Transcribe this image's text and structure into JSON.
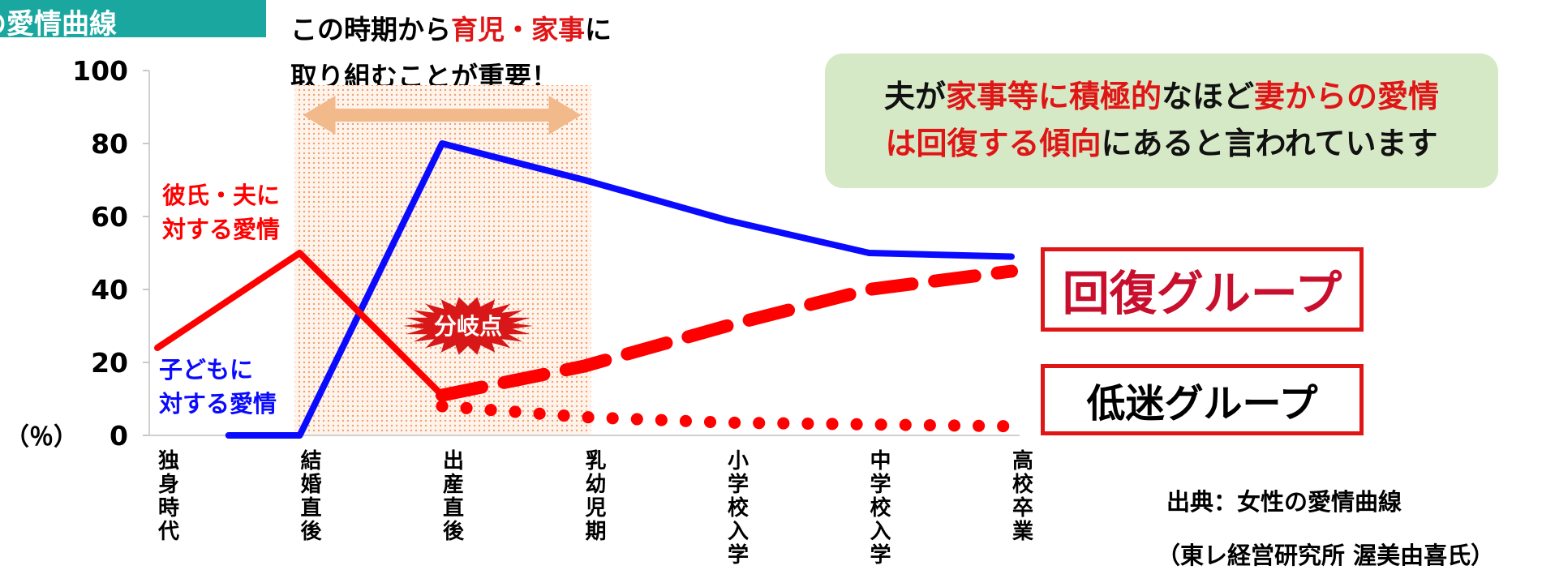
{
  "header": {
    "title_fragment": "の愛情曲線"
  },
  "top_note": {
    "part1": "この時期から",
    "highlight": "育児・家事",
    "part2": "に",
    "line2": "取り組むことが重要！"
  },
  "callout": {
    "l1_a": "夫が",
    "l1_b": "家事等に積極的",
    "l1_c": "なほど",
    "l1_d": "妻からの愛情",
    "l2_a": "は回復する傾向",
    "l2_b": "にあると言われています"
  },
  "groups": {
    "recovery": "回復グループ",
    "stagnant": "低迷グループ"
  },
  "source": {
    "line1": "出典：女性の愛情曲線",
    "line2": "（東レ経営研究所 渥美由喜氏）"
  },
  "chart_data": {
    "type": "line",
    "categories": [
      "独身時代",
      "結婚直後",
      "出産直後",
      "乳幼児期",
      "小学校入学",
      "中学校入学",
      "高校卒業"
    ],
    "ylim": [
      0,
      100
    ],
    "yticks": [
      "0",
      "20",
      "40",
      "60",
      "80",
      "100"
    ],
    "ylabel": "（％）",
    "highlight_band": [
      1,
      3
    ],
    "branch_label": "分岐点",
    "series": [
      {
        "name": "彼氏・夫に\n対する愛情",
        "color": "#ff0000",
        "style": "solid",
        "x": [
          0,
          1,
          2
        ],
        "values": [
          24,
          50,
          11
        ]
      },
      {
        "name": "子どもに\n対する愛情",
        "color": "#0a0aff",
        "style": "solid",
        "x": [
          0.5,
          1,
          2,
          3,
          4,
          5,
          6
        ],
        "values": [
          0,
          0,
          80,
          70,
          59,
          50,
          49
        ]
      },
      {
        "name": "回復グループ",
        "color": "#ff0000",
        "style": "dashed",
        "x": [
          2,
          3,
          4,
          5,
          6
        ],
        "values": [
          11,
          19,
          30,
          40,
          45
        ]
      },
      {
        "name": "低迷グループ",
        "color": "#ff0000",
        "style": "dotted",
        "x": [
          2,
          3,
          4,
          5,
          6
        ],
        "values": [
          8,
          5,
          3.5,
          3,
          2.5
        ]
      }
    ]
  }
}
